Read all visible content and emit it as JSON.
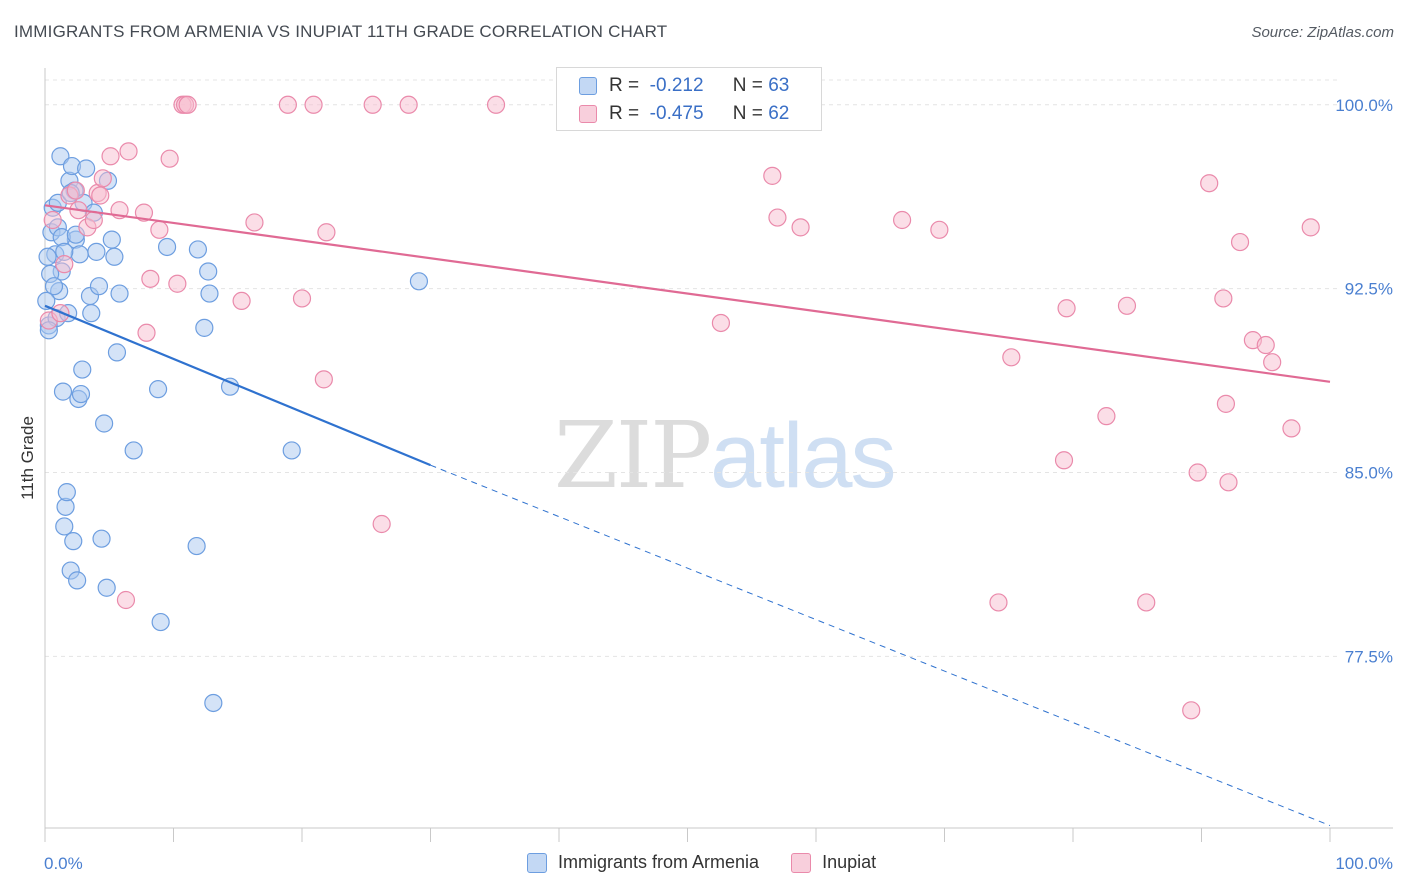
{
  "title": "IMMIGRANTS FROM ARMENIA VS INUPIAT 11TH GRADE CORRELATION CHART",
  "source": "Source: ZipAtlas.com",
  "watermark": {
    "zip": "ZIP",
    "atlas": "atlas"
  },
  "legend_top": [
    {
      "r_label": "R =",
      "r_value": "-0.212",
      "n_label": "N =",
      "n_value": "63"
    },
    {
      "r_label": "R =",
      "r_value": "-0.475",
      "n_label": "N =",
      "n_value": "62"
    }
  ],
  "legend_bottom": [
    {
      "label": "Immigrants from Armenia"
    },
    {
      "label": "Inupiat"
    }
  ],
  "colors": {
    "series1_fill": "#a9c8f0",
    "series1_stroke": "#6d9ee0",
    "series1_line": "#2f72cf",
    "series2_fill": "#f7bed0",
    "series2_stroke": "#ea8aab",
    "series2_line": "#e06a94",
    "tick_text": "#4a7fd0"
  },
  "chart_data": {
    "type": "scatter",
    "xlabel": "",
    "ylabel": "11th Grade",
    "xlim": [
      0,
      100
    ],
    "ylim": [
      70.5,
      101.5
    ],
    "x_tick_labels": [
      "0.0%",
      "100.0%"
    ],
    "y_ticks": [
      77.5,
      85.0,
      92.5,
      100.0
    ],
    "y_tick_labels": [
      "77.5%",
      "85.0%",
      "92.5%",
      "100.0%"
    ],
    "grid": "horizontal dashed",
    "legend_position": "top-center",
    "series": [
      {
        "name": "Immigrants from Armenia",
        "r": -0.212,
        "n": 63,
        "trend": {
          "x0": 0,
          "y0": 91.8,
          "x1": 30,
          "y1": 85.3,
          "dashed_to_x": 100,
          "dashed_to_y": 70.6
        },
        "points": [
          [
            0.3,
            91.0
          ],
          [
            0.5,
            94.8
          ],
          [
            0.6,
            95.8
          ],
          [
            0.8,
            93.9
          ],
          [
            0.9,
            91.3
          ],
          [
            1.0,
            95.0
          ],
          [
            1.1,
            92.4
          ],
          [
            1.2,
            97.9
          ],
          [
            1.3,
            93.2
          ],
          [
            1.4,
            88.3
          ],
          [
            1.5,
            82.8
          ],
          [
            1.6,
            83.6
          ],
          [
            1.7,
            84.2
          ],
          [
            1.8,
            91.5
          ],
          [
            1.9,
            96.9
          ],
          [
            2.0,
            81.0
          ],
          [
            2.1,
            97.5
          ],
          [
            2.2,
            82.2
          ],
          [
            2.3,
            96.5
          ],
          [
            2.4,
            94.5
          ],
          [
            2.5,
            80.6
          ],
          [
            2.6,
            88.0
          ],
          [
            2.7,
            93.9
          ],
          [
            2.8,
            88.2
          ],
          [
            2.9,
            89.2
          ],
          [
            3.0,
            96.0
          ],
          [
            3.2,
            97.4
          ],
          [
            3.5,
            92.2
          ],
          [
            3.6,
            91.5
          ],
          [
            3.8,
            95.6
          ],
          [
            4.0,
            94.0
          ],
          [
            4.2,
            92.6
          ],
          [
            4.4,
            82.3
          ],
          [
            4.6,
            87.0
          ],
          [
            4.8,
            80.3
          ],
          [
            4.9,
            96.9
          ],
          [
            5.2,
            94.5
          ],
          [
            5.4,
            93.8
          ],
          [
            5.6,
            89.9
          ],
          [
            5.8,
            92.3
          ],
          [
            6.9,
            85.9
          ],
          [
            8.8,
            88.4
          ],
          [
            9.0,
            78.9
          ],
          [
            9.5,
            94.2
          ],
          [
            11.8,
            82.0
          ],
          [
            11.9,
            94.1
          ],
          [
            12.4,
            90.9
          ],
          [
            12.7,
            93.2
          ],
          [
            12.8,
            92.3
          ],
          [
            13.1,
            75.6
          ],
          [
            14.4,
            88.5
          ],
          [
            19.2,
            85.9
          ],
          [
            29.1,
            92.8
          ],
          [
            0.2,
            93.8
          ],
          [
            0.4,
            93.1
          ],
          [
            0.7,
            92.6
          ],
          [
            1.0,
            96.0
          ],
          [
            1.3,
            94.6
          ],
          [
            1.5,
            94.0
          ],
          [
            2.0,
            96.4
          ],
          [
            2.4,
            94.7
          ],
          [
            0.1,
            92.0
          ],
          [
            0.3,
            90.8
          ]
        ]
      },
      {
        "name": "Inupiat",
        "r": -0.475,
        "n": 62,
        "trend": {
          "x0": 0,
          "y0": 95.9,
          "x1": 100,
          "y1": 88.7
        },
        "points": [
          [
            0.3,
            91.2
          ],
          [
            0.6,
            95.3
          ],
          [
            1.2,
            91.5
          ],
          [
            1.5,
            93.5
          ],
          [
            1.9,
            96.3
          ],
          [
            2.4,
            96.5
          ],
          [
            2.6,
            95.7
          ],
          [
            3.3,
            95.0
          ],
          [
            3.8,
            95.3
          ],
          [
            4.1,
            96.4
          ],
          [
            4.3,
            96.3
          ],
          [
            4.5,
            97.0
          ],
          [
            5.1,
            97.9
          ],
          [
            5.8,
            95.7
          ],
          [
            6.3,
            79.8
          ],
          [
            6.5,
            98.1
          ],
          [
            7.7,
            95.6
          ],
          [
            7.9,
            90.7
          ],
          [
            8.2,
            92.9
          ],
          [
            8.9,
            94.9
          ],
          [
            9.7,
            97.8
          ],
          [
            10.3,
            92.7
          ],
          [
            10.7,
            100.0
          ],
          [
            10.9,
            100.0
          ],
          [
            11.1,
            100.0
          ],
          [
            15.3,
            92.0
          ],
          [
            16.3,
            95.2
          ],
          [
            18.9,
            100.0
          ],
          [
            20.0,
            92.1
          ],
          [
            20.9,
            100.0
          ],
          [
            21.7,
            88.8
          ],
          [
            21.9,
            94.8
          ],
          [
            25.5,
            100.0
          ],
          [
            26.2,
            82.9
          ],
          [
            28.3,
            100.0
          ],
          [
            35.1,
            100.0
          ],
          [
            47.4,
            100.0
          ],
          [
            52.6,
            91.1
          ],
          [
            56.6,
            97.1
          ],
          [
            57.0,
            95.4
          ],
          [
            58.8,
            95.0
          ],
          [
            66.7,
            95.3
          ],
          [
            69.6,
            94.9
          ],
          [
            74.2,
            79.7
          ],
          [
            75.2,
            89.7
          ],
          [
            79.3,
            85.5
          ],
          [
            79.5,
            91.7
          ],
          [
            82.6,
            87.3
          ],
          [
            84.2,
            91.8
          ],
          [
            85.7,
            79.7
          ],
          [
            89.2,
            75.3
          ],
          [
            89.7,
            85.0
          ],
          [
            90.6,
            96.8
          ],
          [
            91.7,
            92.1
          ],
          [
            91.9,
            87.8
          ],
          [
            92.1,
            84.6
          ],
          [
            93.0,
            94.4
          ],
          [
            94.0,
            90.4
          ],
          [
            95.0,
            90.2
          ],
          [
            95.5,
            89.5
          ],
          [
            97.0,
            86.8
          ],
          [
            98.5,
            95.0
          ]
        ]
      }
    ]
  }
}
